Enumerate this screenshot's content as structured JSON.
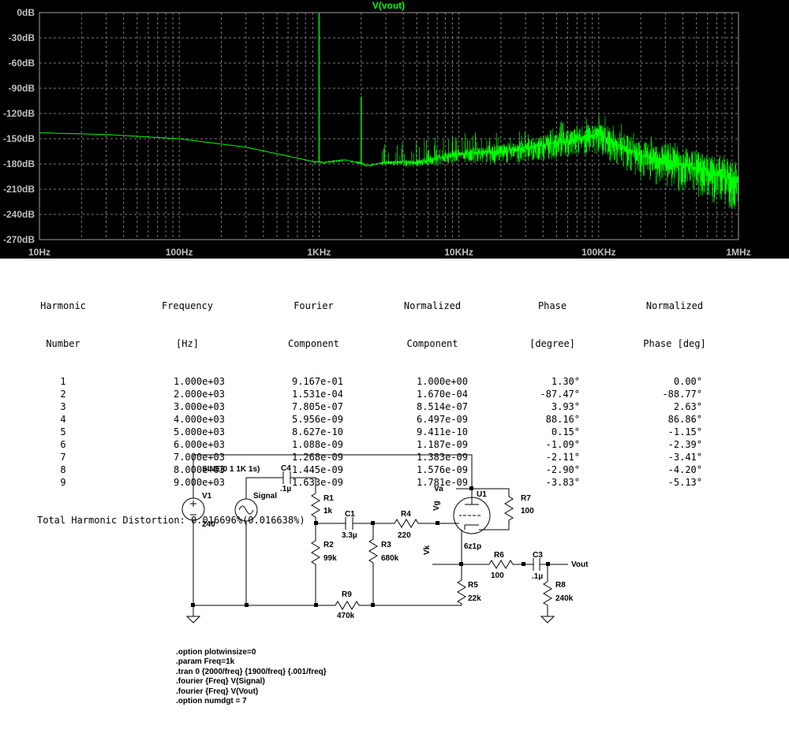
{
  "plot": {
    "title": "V(vout)",
    "y_tick_labels": [
      "0dB",
      "-30dB",
      "-60dB",
      "-90dB",
      "-120dB",
      "-150dB",
      "-180dB",
      "-210dB",
      "-240dB",
      "-270dB"
    ],
    "x_tick_labels": [
      "10Hz",
      "100Hz",
      "1KHz",
      "10KHz",
      "100KHz",
      "1MHz"
    ],
    "colors": {
      "background": "#000000",
      "trace": "#00ff00",
      "grid": "#7a7a7a",
      "tick_text": "#c0c0c0"
    }
  },
  "chart_data": {
    "type": "line",
    "title": "V(vout)",
    "xscale": "log",
    "xlim": [
      10,
      1000000
    ],
    "ylim": [
      -270,
      0
    ],
    "grid": true,
    "series": [
      {
        "name": "V(vout)",
        "x": [
          10,
          30,
          100,
          300,
          900,
          1000,
          1100,
          1500,
          2000,
          2200,
          3000,
          5000,
          10000,
          20000,
          50000,
          100000,
          200000,
          500000,
          1000000
        ],
        "y": [
          -143,
          -145,
          -150,
          -160,
          -177,
          -1,
          -178,
          -175,
          -100,
          -182,
          -178,
          -178,
          -168,
          -165,
          -155,
          -145,
          -170,
          -185,
          -200
        ]
      }
    ]
  },
  "fourier": {
    "headers": [
      [
        "Harmonic",
        "Number"
      ],
      [
        "Frequency",
        "[Hz]"
      ],
      [
        "Fourier",
        "Component"
      ],
      [
        "Normalized",
        "Component"
      ],
      [
        "Phase",
        "[degree]"
      ],
      [
        "Normalized",
        "Phase [deg]"
      ]
    ],
    "rows": [
      [
        "1",
        "1.000e+03",
        "9.167e-01",
        "1.000e+00",
        "1.30°",
        "0.00°"
      ],
      [
        "2",
        "2.000e+03",
        "1.531e-04",
        "1.670e-04",
        "-87.47°",
        "-88.77°"
      ],
      [
        "3",
        "3.000e+03",
        "7.805e-07",
        "8.514e-07",
        "3.93°",
        "2.63°"
      ],
      [
        "4",
        "4.000e+03",
        "5.956e-09",
        "6.497e-09",
        "88.16°",
        "86.86°"
      ],
      [
        "5",
        "5.000e+03",
        "8.627e-10",
        "9.411e-10",
        "0.15°",
        "-1.15°"
      ],
      [
        "6",
        "6.000e+03",
        "1.088e-09",
        "1.187e-09",
        "-1.09°",
        "-2.39°"
      ],
      [
        "7",
        "7.000e+03",
        "1.268e-09",
        "1.383e-09",
        "-2.11°",
        "-3.41°"
      ],
      [
        "8",
        "8.000e+03",
        "1.445e-09",
        "1.576e-09",
        "-2.90°",
        "-4.20°"
      ],
      [
        "9",
        "9.000e+03",
        "1.633e-09",
        "1.781e-09",
        "-3.83°",
        "-5.13°"
      ]
    ],
    "thd": "Total Harmonic Distortion: 0.016696%(0.016638%)"
  },
  "schematic": {
    "labels": {
      "sine": "SINE(0 1 1K 1s)",
      "V1": "V1",
      "V1_val": "240",
      "signal": "Signal",
      "C4": "C4",
      "C4_val": ".1µ",
      "R1": "R1",
      "R1_val": "1k",
      "C1": "C1",
      "C1_val": "3.3µ",
      "R4": "R4",
      "R4_val": "220",
      "R2": "R2",
      "R2_val": "99k",
      "R3": "R3",
      "R3_val": "680k",
      "R9": "R9",
      "R9_val": "470k",
      "Va": "Va",
      "Vg": "Vg",
      "Vk": "Vk",
      "U1": "U1",
      "U1_val": "6z1p",
      "R7": "R7",
      "R7_val": "100",
      "R6": "R6",
      "R6_val": "100",
      "C3": "C3",
      "C3_val": ".1µ",
      "Vout": "Vout",
      "R5": "R5",
      "R5_val": "22k",
      "R8": "R8",
      "R8_val": "240k"
    },
    "directives": [
      ".option plotwinsize=0",
      ".param Freq=1k",
      ".tran 0 {2000/freq} {1900/freq} {.001/freq}",
      ".fourier {Freq} V(Signal)",
      ".fourier {Freq} V(Vout)",
      ".option numdgt = 7"
    ]
  }
}
